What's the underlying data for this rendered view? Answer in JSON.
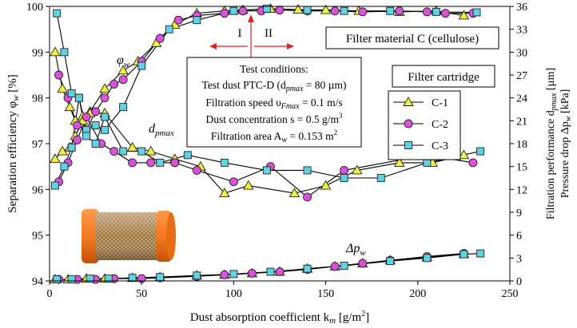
{
  "chart_data": {
    "type": "line",
    "x_axis": {
      "label": "Dust absorption coefficient k",
      "label_sub": "m",
      "label_unit": " [g/m",
      "label_sup": "2",
      "label_end": "]",
      "range": [
        0,
        250
      ],
      "ticks": [
        "0",
        "50",
        "100",
        "150",
        "200",
        "250"
      ]
    },
    "y_left": {
      "label": "Separation efficiency φ",
      "label_sub": "w",
      "label_unit": " [%]",
      "range": [
        94,
        100
      ],
      "ticks": [
        "94",
        "95",
        "96",
        "97",
        "98",
        "99",
        "100"
      ]
    },
    "y_right": {
      "label_line1": "Filtration performance d",
      "label_line1_sub": "pmax",
      "label_line1_unit": " [µm]",
      "label_line2": "Pressure drop Δp",
      "label_line2_sub": "w",
      "label_line2_unit": " [kPa]",
      "range": [
        0,
        36
      ],
      "ticks": [
        "0",
        "3",
        "6",
        "9",
        "12",
        "15",
        "18",
        "21",
        "24",
        "27",
        "30",
        "33",
        "36"
      ]
    },
    "legend": {
      "position": "right, inside plot",
      "entries": [
        "C-1",
        "C-2",
        "C-3"
      ]
    },
    "annotations": {
      "phi_label": "φ",
      "phi_sub": "w",
      "dpmax_label": "d",
      "dpmax_sub": "pmax",
      "dp_label": "Δp",
      "dp_sub": "w",
      "zone_I": "I",
      "zone_II": "II",
      "material_box": "Filter material C (cellulose)",
      "cartridge_box": "Filter cartridge",
      "conditions_title": "Test conditions:",
      "conditions_line1": "Test dust PTC-D (d",
      "conditions_line1_sub": "pmax",
      "conditions_line1_end": " = 80 µm)",
      "conditions_line2": "Filtration speed υ",
      "conditions_line2_sub": "Fmax",
      "conditions_line2_end": " = 0.1 m/s",
      "conditions_line3": "Dust concentration s = 0.5 g/m",
      "conditions_line3_sup": "3",
      "conditions_line4": "Filtration area A",
      "conditions_line4_sub": "w",
      "conditions_line4_end": " = 0.153 m",
      "conditions_line4_sup": "2"
    },
    "series": [
      {
        "name": "C-1",
        "marker": "triangle",
        "color": "#f2f23a",
        "efficiency": {
          "x": [
            3,
            7,
            11,
            14,
            18,
            22,
            30,
            40,
            48,
            58,
            68,
            80,
            95,
            105,
            120,
            135,
            150,
            168,
            190,
            210,
            225
          ],
          "y": [
            99.0,
            98.2,
            97.8,
            97.5,
            97.6,
            97.7,
            98.2,
            98.6,
            98.8,
            99.2,
            99.6,
            99.85,
            99.9,
            99.92,
            99.95,
            99.93,
            99.92,
            99.9,
            99.88,
            99.9,
            99.8
          ]
        },
        "dpmax": {
          "x": [
            3,
            7,
            11,
            14,
            18,
            22,
            30,
            45,
            55,
            68,
            82,
            95,
            108,
            133,
            150,
            167,
            190,
            208,
            225
          ],
          "y": [
            16.0,
            17.0,
            17.5,
            19.0,
            21.0,
            22.0,
            22.0,
            17.5,
            17.0,
            16.0,
            15.0,
            11.5,
            12.5,
            11.5,
            12.5,
            14.5,
            15.5,
            15.5,
            16.5
          ]
        },
        "pressure": {
          "x": [
            3,
            10,
            20,
            30,
            45,
            60,
            80,
            95,
            110,
            125,
            140,
            155,
            170,
            185,
            205,
            225
          ],
          "y": [
            0.2,
            0.2,
            0.3,
            0.3,
            0.4,
            0.5,
            0.7,
            0.8,
            1.0,
            1.2,
            1.6,
            1.9,
            2.3,
            2.7,
            3.1,
            3.5
          ]
        }
      },
      {
        "name": "C-2",
        "marker": "circle",
        "color": "#dc50dc",
        "efficiency": {
          "x": [
            5,
            10,
            15,
            20,
            25,
            30,
            35,
            40,
            50,
            60,
            70,
            80,
            95,
            105,
            115,
            125,
            140,
            155,
            170,
            190,
            205,
            215,
            230
          ],
          "y": [
            98.5,
            98.0,
            97.4,
            97.3,
            97.7,
            98.0,
            98.3,
            98.4,
            98.8,
            99.3,
            99.7,
            99.8,
            99.85,
            99.9,
            99.9,
            99.92,
            99.9,
            99.9,
            99.88,
            99.9,
            99.88,
            99.85,
            99.85
          ]
        },
        "dpmax": {
          "x": [
            5,
            10,
            15,
            20,
            28,
            35,
            45,
            55,
            68,
            80,
            100,
            120,
            140,
            160,
            205,
            230
          ],
          "y": [
            13.0,
            15.5,
            18.5,
            21.5,
            18.0,
            17.0,
            15.5,
            15.5,
            15.5,
            14.5,
            13.0,
            15.0,
            11.0,
            14.5,
            16.5,
            15.5
          ]
        },
        "pressure": {
          "x": [
            5,
            15,
            25,
            35,
            50,
            60,
            80,
            95,
            110,
            125,
            140,
            155,
            170,
            185,
            205,
            225
          ],
          "y": [
            0.2,
            0.2,
            0.2,
            0.3,
            0.3,
            0.4,
            0.6,
            0.8,
            1.0,
            1.2,
            1.5,
            1.9,
            2.3,
            2.7,
            3.2,
            3.6
          ]
        }
      },
      {
        "name": "C-3",
        "marker": "square",
        "color": "#5fd3e6",
        "efficiency": {
          "x": [
            4,
            8,
            12,
            16,
            20,
            25,
            30,
            40,
            50,
            65,
            80,
            100,
            118,
            140,
            160,
            185,
            210,
            232
          ],
          "y": [
            99.85,
            99.0,
            98.1,
            98.0,
            97.3,
            97.4,
            97.3,
            97.8,
            98.7,
            99.5,
            99.7,
            99.9,
            99.95,
            99.92,
            99.9,
            99.9,
            99.88,
            99.87
          ]
        },
        "dpmax": {
          "x": [
            3,
            8,
            12,
            16,
            20,
            25,
            30,
            40,
            50,
            60,
            75,
            95,
            118,
            140,
            160,
            180,
            205,
            234
          ],
          "y": [
            12.5,
            15.0,
            17.5,
            24.0,
            19.0,
            18.0,
            21.5,
            17.0,
            17.0,
            15.5,
            16.5,
            15.5,
            14.5,
            14.5,
            13.5,
            13.5,
            15.5,
            17.0
          ]
        },
        "pressure": {
          "x": [
            4,
            12,
            22,
            32,
            45,
            60,
            80,
            100,
            120,
            140,
            160,
            185,
            205,
            225,
            234
          ],
          "y": [
            0.2,
            0.2,
            0.3,
            0.3,
            0.4,
            0.5,
            0.7,
            0.9,
            1.2,
            1.6,
            2.0,
            2.6,
            3.0,
            3.5,
            3.6
          ]
        }
      }
    ]
  }
}
